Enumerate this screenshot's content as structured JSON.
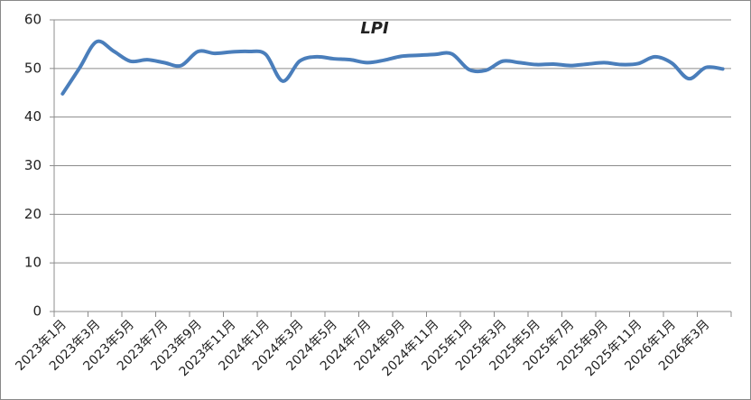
{
  "chart_data": {
    "type": "line",
    "title": "LPI",
    "categories": [
      "2023年1月",
      null,
      "2023年3月",
      null,
      "2023年5月",
      null,
      "2023年7月",
      null,
      "2023年9月",
      null,
      "2023年11月",
      null,
      "2024年1月",
      null,
      "2024年3月",
      null,
      "2024年5月",
      null,
      "2024年7月",
      null,
      "2024年9月",
      null,
      "2024年11月",
      null,
      "2025年1月",
      null,
      "2025年3月",
      null,
      "2025年5月",
      null,
      "2025年7月",
      null,
      "2025年9月",
      null,
      "2025年11月",
      null,
      "2026年1月",
      null,
      "2026年3月",
      null
    ],
    "series": [
      {
        "name": "LPI",
        "color": "#4a7ebb",
        "values": [
          44.8,
          50.1,
          55.5,
          53.6,
          51.5,
          51.8,
          51.2,
          50.6,
          53.5,
          53.1,
          53.4,
          53.5,
          52.9,
          47.4,
          51.5,
          52.4,
          52.0,
          51.8,
          51.2,
          51.7,
          52.5,
          52.7,
          52.9,
          53.0,
          49.8,
          49.6,
          51.5,
          51.2,
          50.8,
          50.9,
          50.6,
          50.9,
          51.2,
          50.8,
          51.0,
          52.4,
          51.1,
          47.9,
          50.2,
          49.9
        ]
      }
    ],
    "ylim": [
      0,
      60
    ],
    "yticks": [
      0,
      10,
      20,
      30,
      40,
      50,
      60
    ],
    "grid": true
  }
}
